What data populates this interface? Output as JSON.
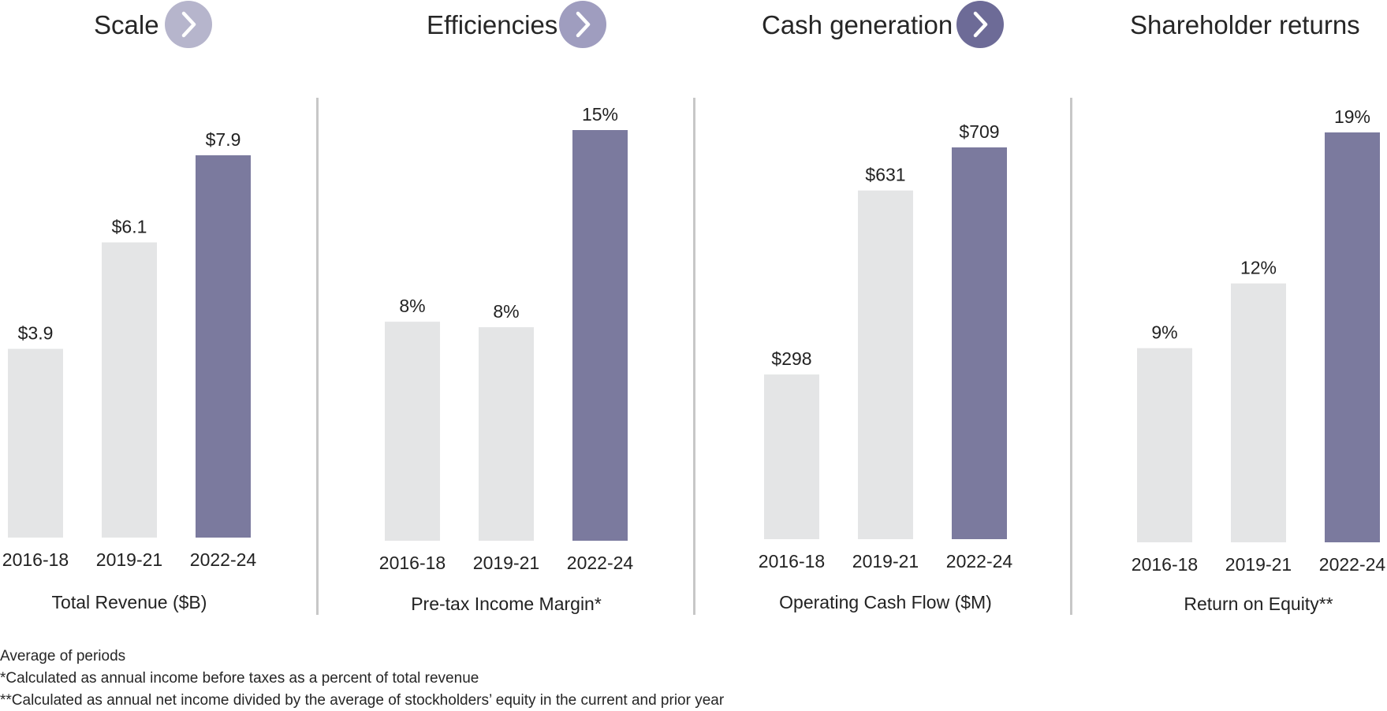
{
  "colors": {
    "bar_light": "#e4e5e6",
    "bar_highlight": "#7b7a9e",
    "chevron_light": "#b6b5cc",
    "chevron_mid": "#9f9dbf",
    "chevron_dark": "#6d6b97",
    "divider": "#c7c7c7"
  },
  "sections": [
    {
      "title": "Scale",
      "chevron": "chevron-right-icon"
    },
    {
      "title": "Efficiencies",
      "chevron": "chevron-right-icon"
    },
    {
      "title": "Cash generation",
      "chevron": "chevron-right-icon"
    },
    {
      "title": "Shareholder returns"
    }
  ],
  "chart_data": [
    {
      "type": "bar",
      "title": "Scale",
      "xlabel": "Total Revenue ($B)",
      "categories": [
        "2016-18",
        "2019-21",
        "2022-24"
      ],
      "values": [
        3.9,
        6.1,
        7.9
      ],
      "labels": [
        "$3.9",
        "$6.1",
        "$7.9"
      ],
      "highlight_index": 2,
      "ylim": [
        0,
        7.9
      ]
    },
    {
      "type": "bar",
      "title": "Efficiencies",
      "xlabel": "Pre-tax Income Margin*",
      "categories": [
        "2016-18",
        "2019-21",
        "2022-24"
      ],
      "values": [
        8.0,
        7.8,
        15.0
      ],
      "labels": [
        "8%",
        "8%",
        "15%"
      ],
      "highlight_index": 2,
      "ylim": [
        0,
        15
      ]
    },
    {
      "type": "bar",
      "title": "Cash generation",
      "xlabel": "Operating Cash Flow ($M)",
      "categories": [
        "2016-18",
        "2019-21",
        "2022-24"
      ],
      "values": [
        298,
        631,
        709
      ],
      "labels": [
        "$298",
        "$631",
        "$709"
      ],
      "highlight_index": 2,
      "ylim": [
        0,
        709
      ]
    },
    {
      "type": "bar",
      "title": "Shareholder returns",
      "xlabel": "Return on Equity**",
      "categories": [
        "2016-18",
        "2019-21",
        "2022-24"
      ],
      "values": [
        9,
        12,
        19
      ],
      "labels": [
        "9%",
        "12%",
        "19%"
      ],
      "highlight_index": 2,
      "ylim": [
        0,
        19
      ]
    }
  ],
  "footnotes": [
    "Average of periods",
    "*Calculated as annual income before taxes as a percent of total revenue",
    "**Calculated as annual net income divided by the average of stockholders’ equity in the current and prior year"
  ]
}
